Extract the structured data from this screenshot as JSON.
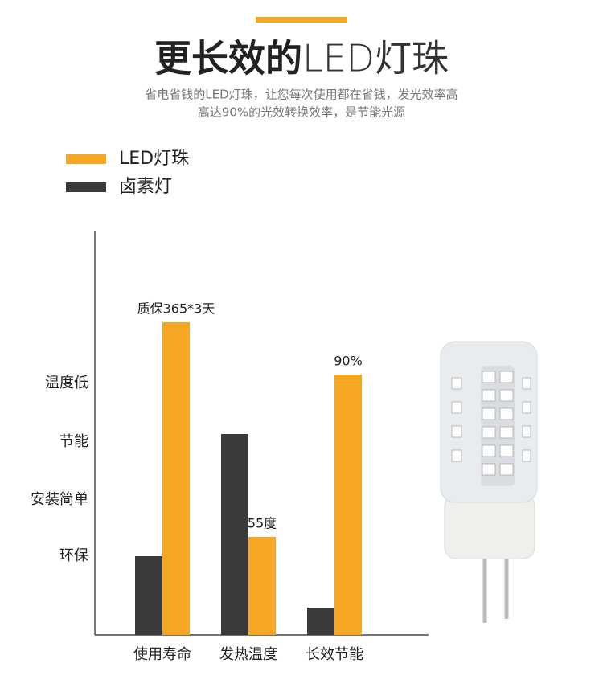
{
  "chart_data": {
    "type": "bar",
    "title_bold": "更长效的",
    "title_light": "LED灯珠",
    "subtitle": [
      "省电省钱的LED灯珠，让您每次使用都在省钱，发光效率高",
      "高达90%的光效转换效率，是节能光源"
    ],
    "categories": [
      "使用寿命",
      "发热温度",
      "长效节能"
    ],
    "series": [
      {
        "name": "LED灯珠",
        "color": "#f5a623",
        "values": [
          389,
          122,
          324
        ]
      },
      {
        "name": "卤素灯",
        "color": "#3a3a3c",
        "values": [
          98,
          250,
          34
        ]
      }
    ],
    "annotations": [
      "质保365*3天",
      "55度",
      "90%"
    ],
    "ylim": [
      0,
      502
    ],
    "yticks": [
      {
        "value": 98,
        "label": "环保"
      },
      {
        "value": 168,
        "label": "安装简单"
      },
      {
        "value": 240,
        "label": "节能"
      },
      {
        "value": 313,
        "label": "温度低"
      }
    ]
  }
}
